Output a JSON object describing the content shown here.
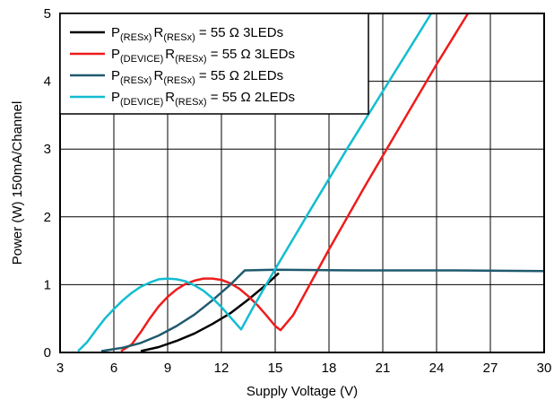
{
  "chart_data": {
    "type": "line",
    "xlabel": "Supply Voltage (V)",
    "ylabel": "Power (W) 150mA/Channel",
    "xlim": [
      3,
      30
    ],
    "ylim": [
      0,
      5
    ],
    "x_ticks": [
      "3",
      "6",
      "9",
      "12",
      "15",
      "18",
      "21",
      "24",
      "27",
      "30"
    ],
    "y_ticks": [
      "0",
      "1",
      "2",
      "3",
      "4",
      "5"
    ],
    "grid": true,
    "legend_position": "top-left",
    "series": [
      {
        "label": {
          "p": "P",
          "p_sub": "(RESx)",
          "r": "R",
          "r_sub": "(RESx)",
          "rest": " = 55 Ω 3LEDs"
        },
        "color": "#000000",
        "points": [
          [
            7.5,
            0.02
          ],
          [
            8.5,
            0.08
          ],
          [
            9.5,
            0.17
          ],
          [
            10.5,
            0.28
          ],
          [
            11.5,
            0.42
          ],
          [
            12.5,
            0.58
          ],
          [
            13.5,
            0.78
          ],
          [
            14.5,
            1.0
          ],
          [
            15.2,
            1.17
          ]
        ]
      },
      {
        "label": {
          "p": "P",
          "p_sub": "(DEVICE)",
          "r": "R",
          "r_sub": "(RESx)",
          "rest": " = 55 Ω 3LEDs"
        },
        "color": "#ee1c1c",
        "points": [
          [
            6.4,
            0.02
          ],
          [
            7.0,
            0.12
          ],
          [
            7.5,
            0.3
          ],
          [
            8.0,
            0.5
          ],
          [
            8.5,
            0.68
          ],
          [
            9.0,
            0.82
          ],
          [
            9.5,
            0.93
          ],
          [
            10.0,
            1.01
          ],
          [
            10.5,
            1.06
          ],
          [
            11.0,
            1.09
          ],
          [
            11.5,
            1.09
          ],
          [
            12.0,
            1.07
          ],
          [
            12.5,
            1.02
          ],
          [
            13.0,
            0.94
          ],
          [
            13.5,
            0.83
          ],
          [
            14.0,
            0.7
          ],
          [
            14.5,
            0.55
          ],
          [
            15.0,
            0.39
          ],
          [
            15.3,
            0.33
          ],
          [
            16.0,
            0.55
          ],
          [
            18.0,
            1.52
          ],
          [
            20.0,
            2.45
          ],
          [
            22.0,
            3.35
          ],
          [
            24.0,
            4.25
          ],
          [
            25.75,
            5.0
          ]
        ]
      },
      {
        "label": {
          "p": "P",
          "p_sub": "(RESx)",
          "r": "R",
          "r_sub": "(RESx)",
          "rest": " = 55 Ω 2LEDs"
        },
        "color": "#1f5a6e",
        "points": [
          [
            5.3,
            0.02
          ],
          [
            6.5,
            0.07
          ],
          [
            7.5,
            0.14
          ],
          [
            8.5,
            0.25
          ],
          [
            9.5,
            0.39
          ],
          [
            10.5,
            0.56
          ],
          [
            11.5,
            0.77
          ],
          [
            12.5,
            1.0
          ],
          [
            13.3,
            1.21
          ],
          [
            15.0,
            1.22
          ],
          [
            20.0,
            1.21
          ],
          [
            25.0,
            1.21
          ],
          [
            30.0,
            1.2
          ]
        ]
      },
      {
        "label": {
          "p": "P",
          "p_sub": "(DEVICE)",
          "r": "R",
          "r_sub": "(RESx)",
          "rest": " = 55 Ω 2LEDs"
        },
        "color": "#12bdd0",
        "points": [
          [
            4.0,
            0.02
          ],
          [
            4.5,
            0.15
          ],
          [
            5.0,
            0.33
          ],
          [
            5.5,
            0.5
          ],
          [
            6.0,
            0.64
          ],
          [
            6.5,
            0.77
          ],
          [
            7.0,
            0.88
          ],
          [
            7.5,
            0.97
          ],
          [
            8.0,
            1.03
          ],
          [
            8.5,
            1.08
          ],
          [
            9.0,
            1.09
          ],
          [
            9.5,
            1.08
          ],
          [
            10.0,
            1.05
          ],
          [
            10.5,
            0.99
          ],
          [
            11.0,
            0.91
          ],
          [
            11.5,
            0.8
          ],
          [
            12.0,
            0.67
          ],
          [
            12.5,
            0.52
          ],
          [
            13.1,
            0.34
          ],
          [
            13.8,
            0.68
          ],
          [
            15.0,
            1.23
          ],
          [
            17.0,
            2.12
          ],
          [
            19.0,
            3.0
          ],
          [
            21.0,
            3.85
          ],
          [
            23.0,
            4.7
          ],
          [
            23.7,
            5.0
          ]
        ]
      }
    ]
  }
}
